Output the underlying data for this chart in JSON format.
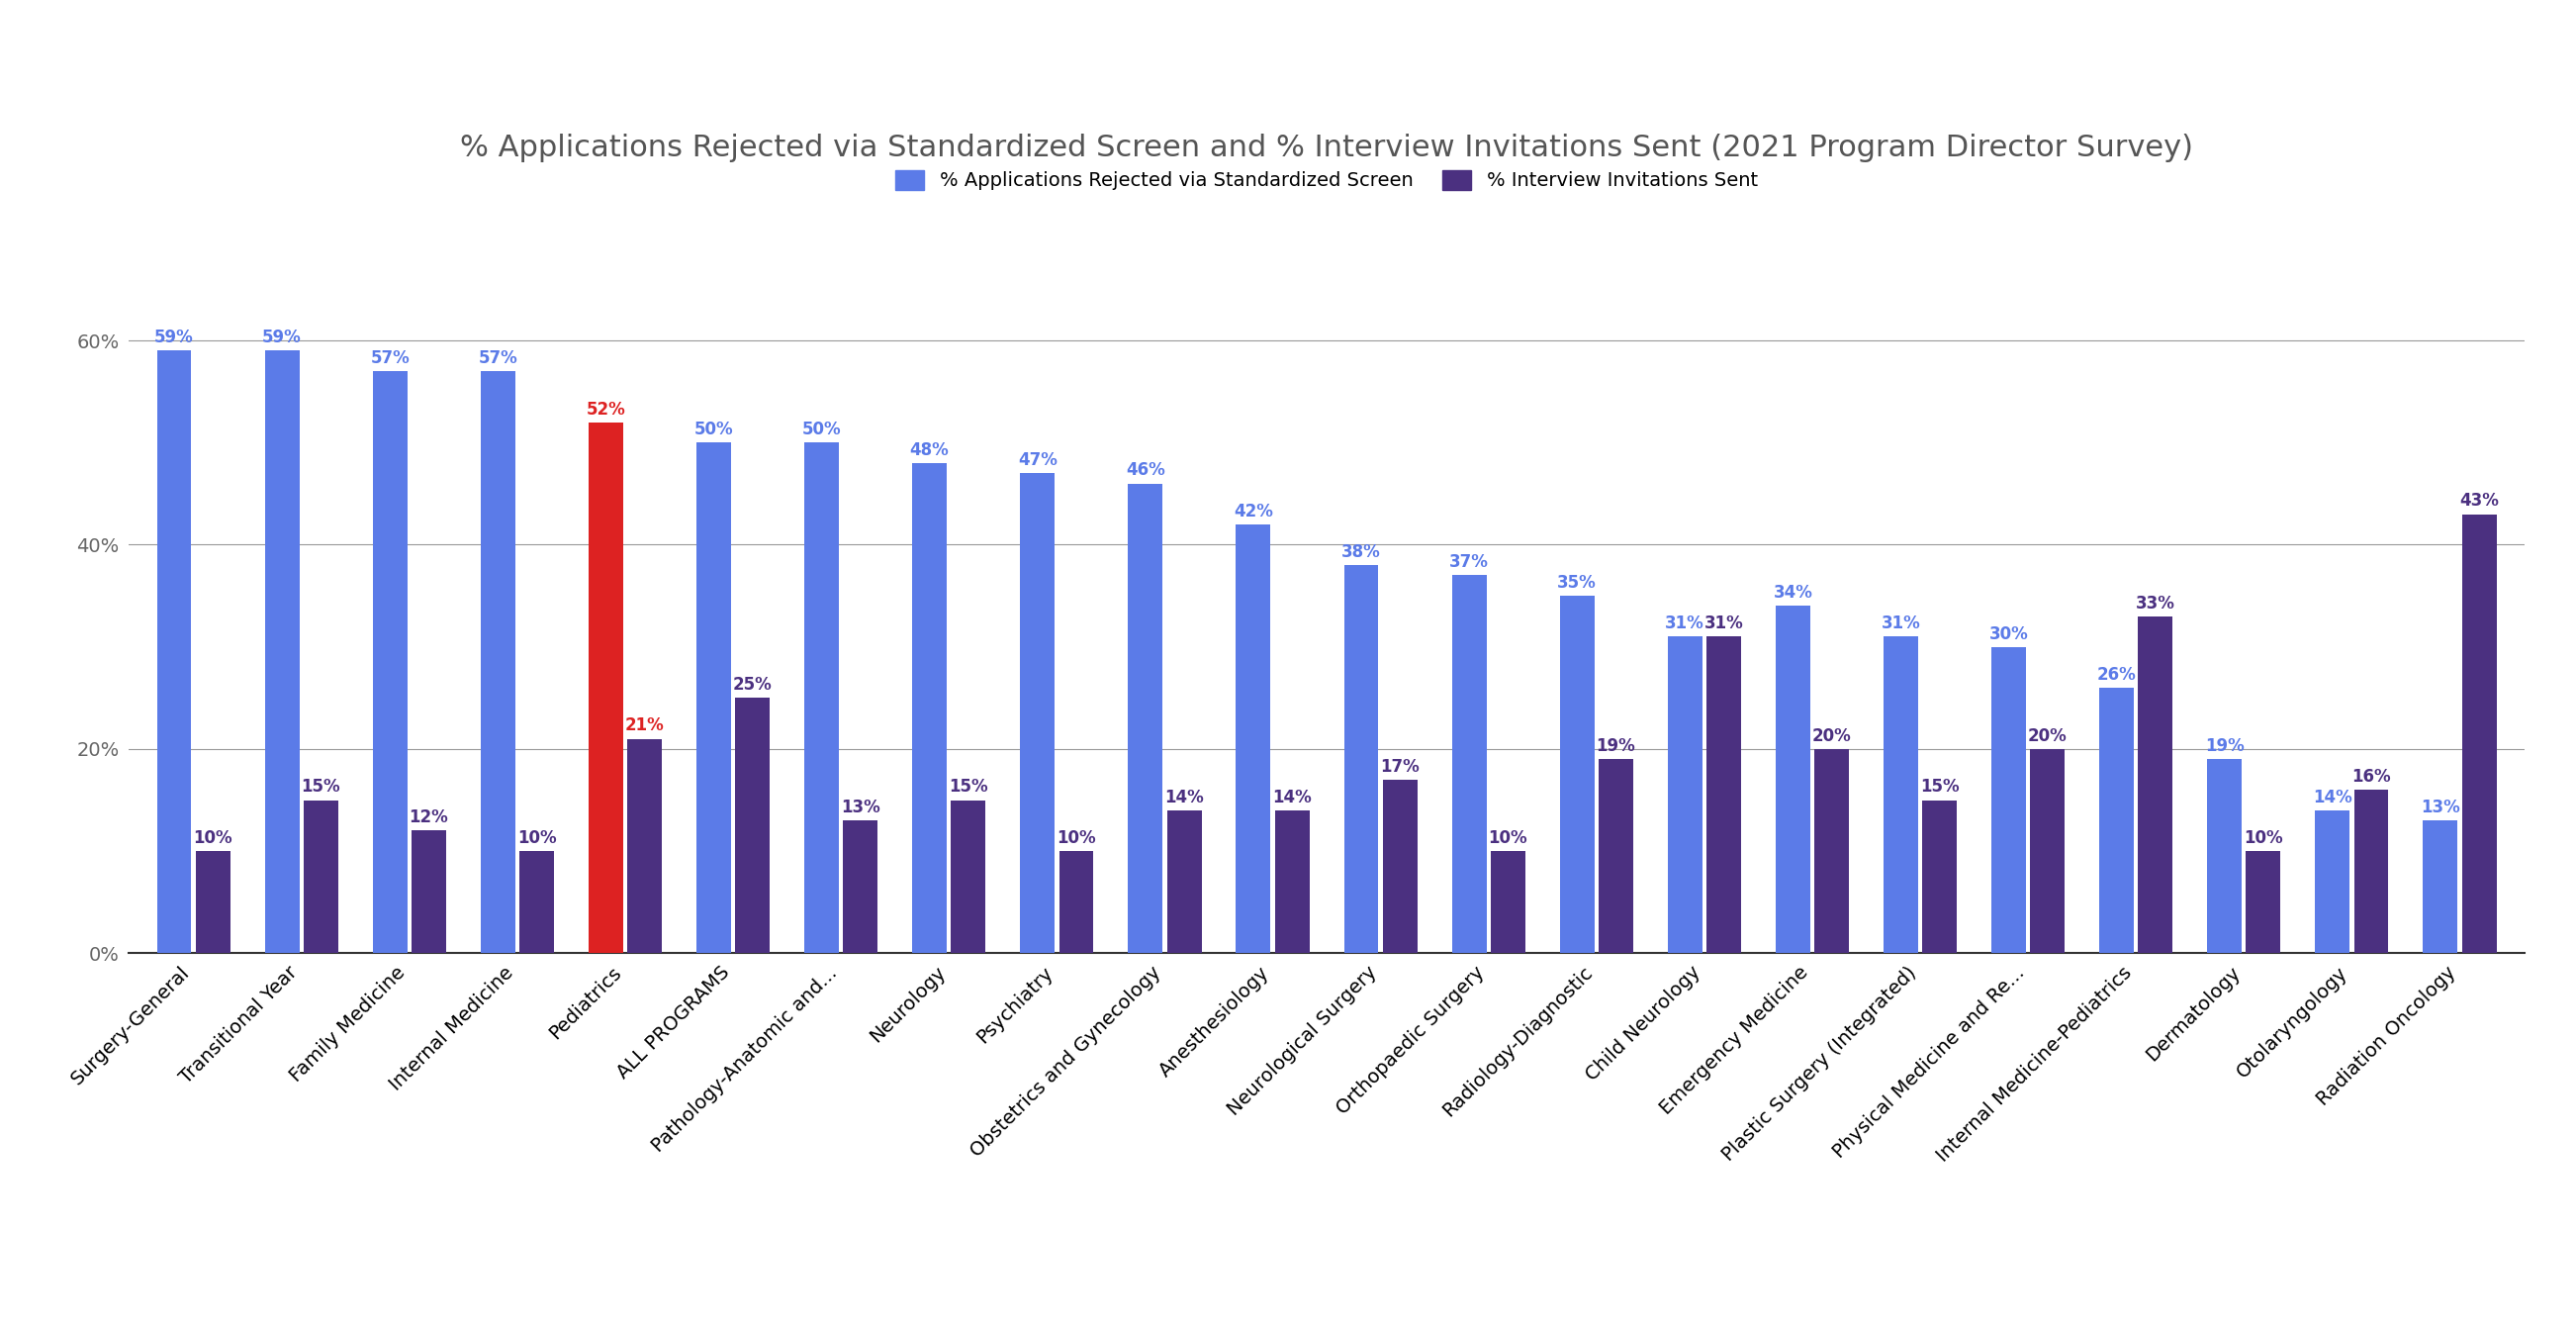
{
  "title": "% Applications Rejected via Standardized Screen and % Interview Invitations Sent (2021 Program Director Survey)",
  "categories": [
    "Surgery-General",
    "Transitional Year",
    "Family Medicine",
    "Internal Medicine",
    "Pediatrics",
    "ALL PROGRAMS",
    "Pathology-Anatomic and...",
    "Neurology",
    "Psychiatry",
    "Obstetrics and Gynecology",
    "Anesthesiology",
    "Neurological Surgery",
    "Orthopaedic Surgery",
    "Radiology-Diagnostic",
    "Child Neurology",
    "Emergency Medicine",
    "Plastic Surgery (Integrated)",
    "Physical Medicine and Re...",
    "Internal Medicine-Pediatrics",
    "Dermatology",
    "Otolaryngology",
    "Radiation Oncology"
  ],
  "screen_values": [
    59,
    59,
    57,
    57,
    52,
    50,
    50,
    48,
    47,
    46,
    42,
    38,
    37,
    35,
    31,
    34,
    31,
    30,
    26,
    19,
    14,
    13
  ],
  "interview_values": [
    10,
    15,
    12,
    10,
    21,
    25,
    13,
    15,
    10,
    14,
    14,
    17,
    10,
    19,
    31,
    20,
    15,
    20,
    33,
    10,
    16,
    43
  ],
  "screen_color_default": "#5B7BE8",
  "screen_color_highlight": "#DD2222",
  "interview_color": "#4B3080",
  "highlight_index": 4,
  "legend_screen_label": "% Applications Rejected via Standardized Screen",
  "legend_interview_label": "% Interview Invitations Sent",
  "ytick_labels": [
    "0%",
    "20%",
    "40%",
    "60%"
  ],
  "ytick_values": [
    0,
    20,
    40,
    60
  ],
  "ylim": [
    0,
    70
  ],
  "background_color": "#ffffff",
  "title_fontsize": 22,
  "label_fontsize": 12,
  "tick_fontsize": 14,
  "legend_fontsize": 14,
  "bar_width": 0.32,
  "bar_gap": 0.04
}
